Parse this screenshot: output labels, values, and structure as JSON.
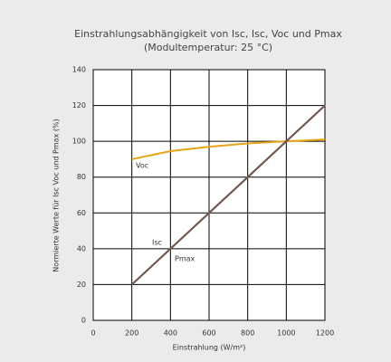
{
  "chart_data": {
    "type": "line",
    "title": [
      "Einstrahlungsabhängigkeit von Isc, Isc, Voc und Pmax",
      "(Modultemperatur: 25 °C)"
    ],
    "x_label": "Einstrahlung (W/m²)",
    "y_label": "Normierte Werte für Isc Voc und Pmax (%)",
    "x": [
      200,
      400,
      600,
      800,
      1000,
      1200
    ],
    "series": [
      {
        "name": "Voc",
        "color": "#e8a317",
        "values": [
          90,
          94.5,
          97,
          98.8,
          100,
          101
        ]
      },
      {
        "name": "Isc",
        "color": "#c0392b",
        "values": [
          20,
          40,
          60,
          80,
          100,
          120
        ]
      },
      {
        "name": "Pmax",
        "color": "#6b5a52",
        "values": [
          20,
          40,
          60,
          80,
          100,
          120
        ]
      }
    ],
    "xlim": [
      0,
      1200
    ],
    "xticks": [
      0,
      200,
      400,
      600,
      800,
      1000,
      1200
    ],
    "ylim": [
      0,
      140
    ],
    "yticks": [
      0,
      20,
      40,
      60,
      80,
      100,
      120,
      140
    ],
    "grid": true
  }
}
